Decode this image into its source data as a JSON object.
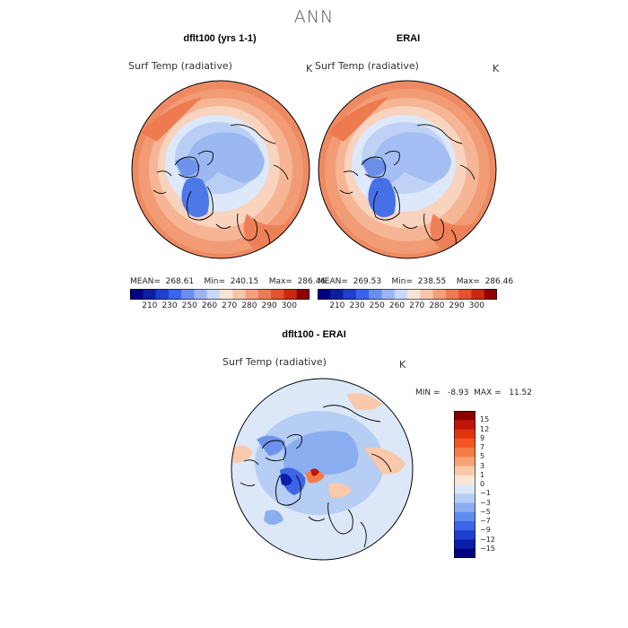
{
  "figure": {
    "title": "ANN"
  },
  "panels": [
    {
      "title": "dflt100 (yrs 1-1)",
      "variable": "Surf Temp (radiative)",
      "unit": "K",
      "stats": "MEAN=  268.61    Min=  240.15    Max=  286.46"
    },
    {
      "title": "ERAI",
      "variable": "Surf Temp (radiative)",
      "unit": "K",
      "stats": "MEAN=  269.53    Min=  238.55    Max=  286.46"
    }
  ],
  "colorbar_top": {
    "ticks": [
      "210",
      "230",
      "250",
      "260",
      "270",
      "280",
      "290",
      "300"
    ],
    "colors": [
      "#000080",
      "#0c1fa0",
      "#1f3fd0",
      "#3a63ee",
      "#6a8ef2",
      "#9bb5f4",
      "#c8d8f8",
      "#f6e4d6",
      "#f7c6aa",
      "#f4a07a",
      "#ee7a52",
      "#e4522e",
      "#cc2a10",
      "#900000"
    ]
  },
  "diff_panel": {
    "title": "dflt100 - ERAI",
    "variable": "Surf Temp (radiative)",
    "unit": "K",
    "stats": "MIN =   -8.93  MAX =   11.52"
  },
  "colorbar_diff": {
    "labels": [
      "15",
      "12",
      "9",
      "7",
      "5",
      "3",
      "1",
      "0",
      "−1",
      "−3",
      "−5",
      "−7",
      "−9",
      "−12",
      "−15"
    ],
    "colors": [
      "#8a0000",
      "#c0150a",
      "#e03310",
      "#f0561e",
      "#f47c46",
      "#f8a276",
      "#fac8aa",
      "#fbe6d8",
      "#dce8f8",
      "#b6cdf4",
      "#8aaef0",
      "#5f8cec",
      "#3d66e6",
      "#1f3fd0",
      "#0a1ea8",
      "#000080"
    ]
  }
}
